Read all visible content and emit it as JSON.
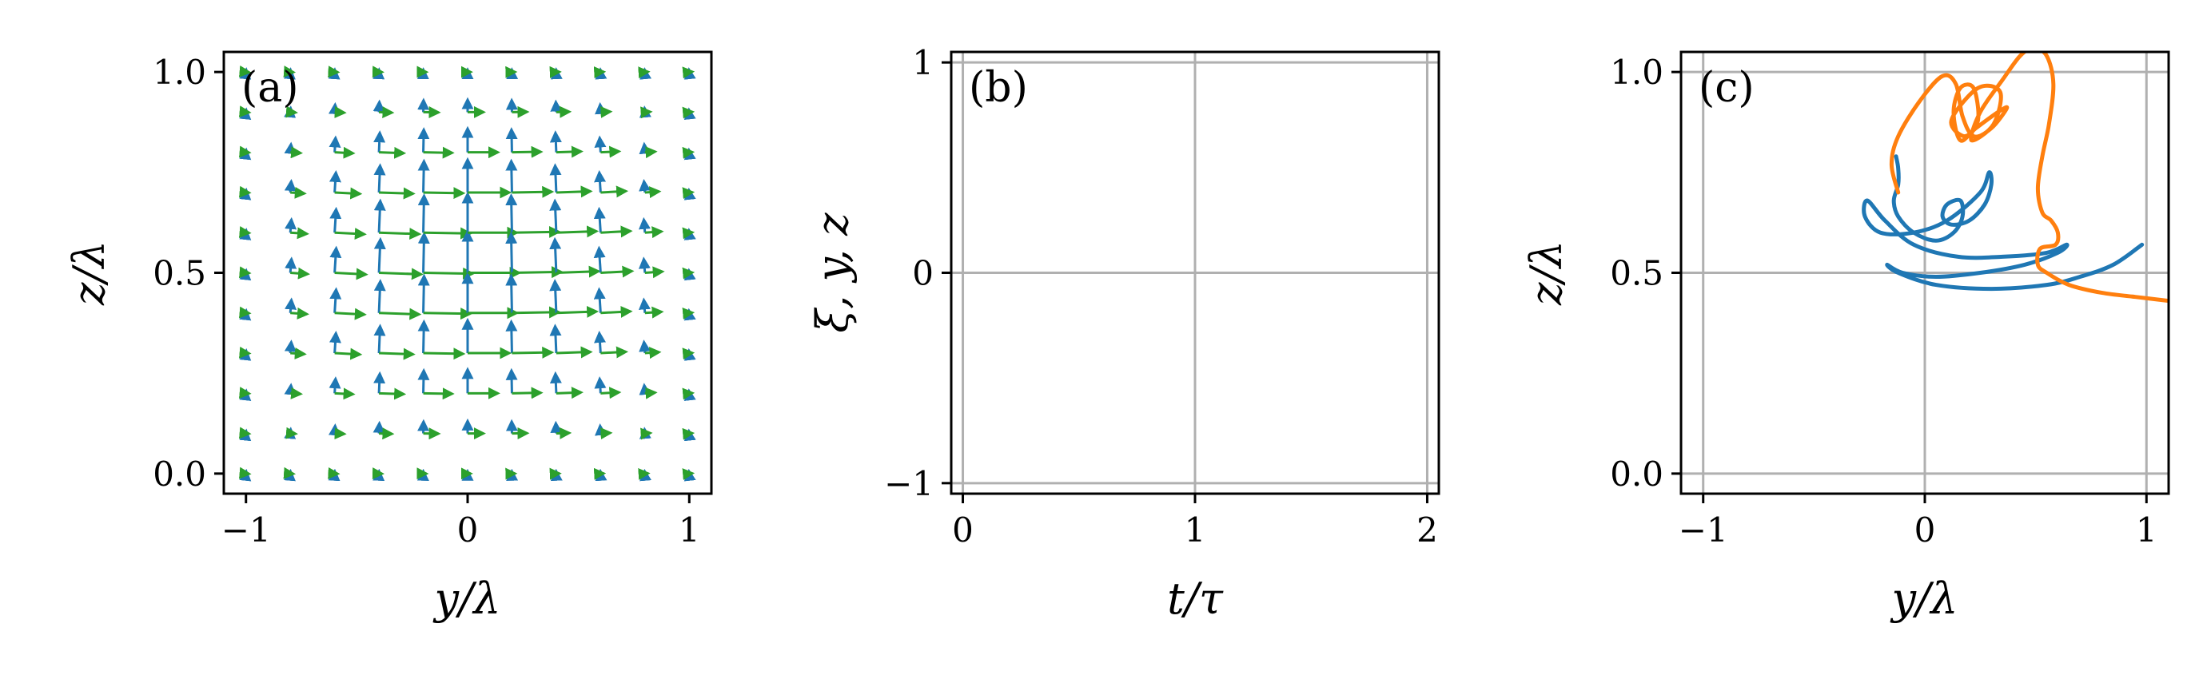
{
  "chart_data": [
    {
      "type": "quiver",
      "panel_label": "(a)",
      "xlabel": "y/λ",
      "ylabel": "z/λ",
      "xlim": [
        -1.1,
        1.1
      ],
      "ylim": [
        -0.05,
        1.05
      ],
      "xticks": [
        -1,
        0,
        1
      ],
      "yticks": [
        0.0,
        0.5,
        1.0
      ],
      "xtick_labels": [
        "−1",
        "0",
        "1"
      ],
      "ytick_labels": [
        "0.0",
        "0.5",
        "1.0"
      ],
      "grid": false,
      "quiver_grid": {
        "y": [
          -1.0,
          -0.8,
          -0.6,
          -0.4,
          -0.2,
          0.0,
          0.2,
          0.4,
          0.6,
          0.8,
          1.0
        ],
        "z": [
          0.0,
          0.1,
          0.2,
          0.3,
          0.4,
          0.5,
          0.6,
          0.7,
          0.8,
          0.9,
          1.0
        ]
      },
      "series": [
        {
          "component": "vertical",
          "color": "#1f77b4"
        },
        {
          "component": "horizontal",
          "color": "#2ca02c"
        }
      ]
    },
    {
      "type": "line",
      "panel_label": "(b)",
      "xlabel": "t/τ",
      "ylabel": "ξ, y, z",
      "xlim": [
        -0.05,
        2.05
      ],
      "ylim": [
        -1.05,
        1.05
      ],
      "xticks": [
        0,
        1,
        2
      ],
      "yticks": [
        -1,
        0,
        1
      ],
      "xtick_labels": [
        "0",
        "1",
        "2"
      ],
      "ytick_labels": [
        "−1",
        "0",
        "1"
      ],
      "grid": true,
      "series": []
    },
    {
      "type": "line",
      "panel_label": "(c)",
      "xlabel": "y/λ",
      "ylabel": "z/λ",
      "xlim": [
        -1.1,
        1.1
      ],
      "ylim": [
        -0.05,
        1.05
      ],
      "xticks": [
        -1,
        0,
        1
      ],
      "yticks": [
        0.0,
        0.5,
        1.0
      ],
      "xtick_labels": [
        "−1",
        "0",
        "1"
      ],
      "ytick_labels": [
        "0.0",
        "0.5",
        "1.0"
      ],
      "grid": true,
      "series": [
        {
          "color": "#1f77b4",
          "x": [
            -0.13,
            -0.12,
            -0.12,
            -0.14,
            -0.12,
            -0.05,
            0.05,
            0.13,
            0.17,
            0.16,
            0.1,
            0.08,
            0.12,
            0.2,
            0.27,
            0.3,
            0.29,
            0.25,
            0.1,
            -0.05,
            -0.2,
            -0.27,
            -0.26,
            -0.18,
            -0.05,
            0.15,
            0.35,
            0.55,
            0.64,
            0.6,
            0.45,
            0.25,
            0.05,
            -0.1,
            -0.17,
            -0.12,
            0.05,
            0.3,
            0.55,
            0.7,
            0.85,
            0.98
          ],
          "y": [
            0.79,
            0.76,
            0.72,
            0.68,
            0.64,
            0.6,
            0.58,
            0.6,
            0.64,
            0.68,
            0.67,
            0.64,
            0.62,
            0.63,
            0.67,
            0.72,
            0.75,
            0.7,
            0.63,
            0.6,
            0.6,
            0.64,
            0.68,
            0.63,
            0.57,
            0.54,
            0.54,
            0.55,
            0.57,
            0.55,
            0.52,
            0.5,
            0.49,
            0.5,
            0.52,
            0.5,
            0.47,
            0.46,
            0.47,
            0.49,
            0.52,
            0.57
          ]
        },
        {
          "color": "#ff7f0e",
          "x": [
            -0.12,
            -0.15,
            -0.12,
            -0.02,
            0.08,
            0.14,
            0.17,
            0.22,
            0.3,
            0.37,
            0.33,
            0.23,
            0.16,
            0.13,
            0.16,
            0.22,
            0.24,
            0.18,
            0.12,
            0.24,
            0.34,
            0.31,
            0.21,
            0.25,
            0.35,
            0.43,
            0.49,
            0.55,
            0.58,
            0.56,
            0.53,
            0.51,
            0.53,
            0.57,
            0.6,
            0.59,
            0.52,
            0.51,
            0.55,
            0.65,
            0.8,
            0.95,
            1.1
          ],
          "y": [
            0.7,
            0.77,
            0.84,
            0.93,
            0.99,
            0.97,
            0.89,
            0.84,
            0.86,
            0.91,
            0.9,
            0.86,
            0.83,
            0.9,
            0.96,
            0.96,
            0.88,
            0.84,
            0.88,
            0.96,
            0.95,
            0.87,
            0.83,
            0.9,
            0.98,
            1.04,
            1.06,
            1.04,
            0.97,
            0.87,
            0.79,
            0.71,
            0.65,
            0.63,
            0.6,
            0.57,
            0.56,
            0.52,
            0.5,
            0.47,
            0.45,
            0.44,
            0.43
          ]
        }
      ]
    }
  ]
}
